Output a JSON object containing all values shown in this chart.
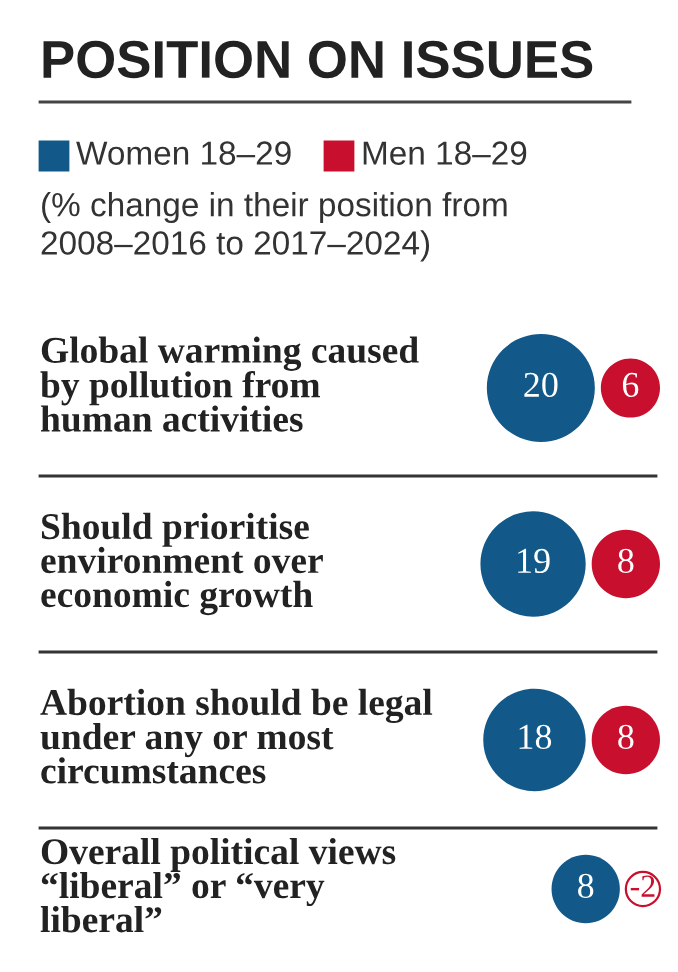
{
  "chart_data": {
    "type": "other",
    "title": "POSITION ON ISSUES",
    "subtitle": "(% change in their position from 2008–2016 to 2017–2024)",
    "categories": [
      "Global warming caused by pollution from human activities",
      "Should prioritise environment over economic growth",
      "Abortion should be legal under any or most circumstances",
      "Overall political views “liberal” or “very liberal”"
    ],
    "series": [
      {
        "name": "Women 18–29",
        "color": "#12598a",
        "values": [
          20,
          19,
          18,
          8
        ]
      },
      {
        "name": "Men 18–29",
        "color": "#c8102e",
        "values": [
          6,
          8,
          8,
          -2
        ]
      }
    ],
    "legend": "top left",
    "data_labels": true
  }
}
